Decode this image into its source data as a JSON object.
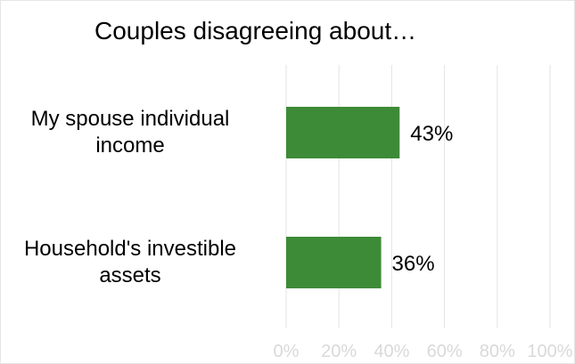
{
  "chart_data": {
    "type": "bar",
    "orientation": "horizontal",
    "title": "Couples disagreeing about…",
    "categories": [
      [
        "My spouse individual",
        "income"
      ],
      [
        "Household's investible",
        "assets"
      ]
    ],
    "values": [
      43,
      36
    ],
    "value_labels": [
      "43%",
      "36%"
    ],
    "xlim": [
      0,
      100
    ],
    "x_ticks": [
      0,
      20,
      40,
      60,
      80,
      100
    ],
    "x_tick_labels": [
      "0%",
      "20%",
      "40%",
      "60%",
      "80%",
      "100%"
    ],
    "grid": true,
    "legend": "none",
    "bar_color": "#3d8b37",
    "grid_color": "#e3e3e3"
  }
}
